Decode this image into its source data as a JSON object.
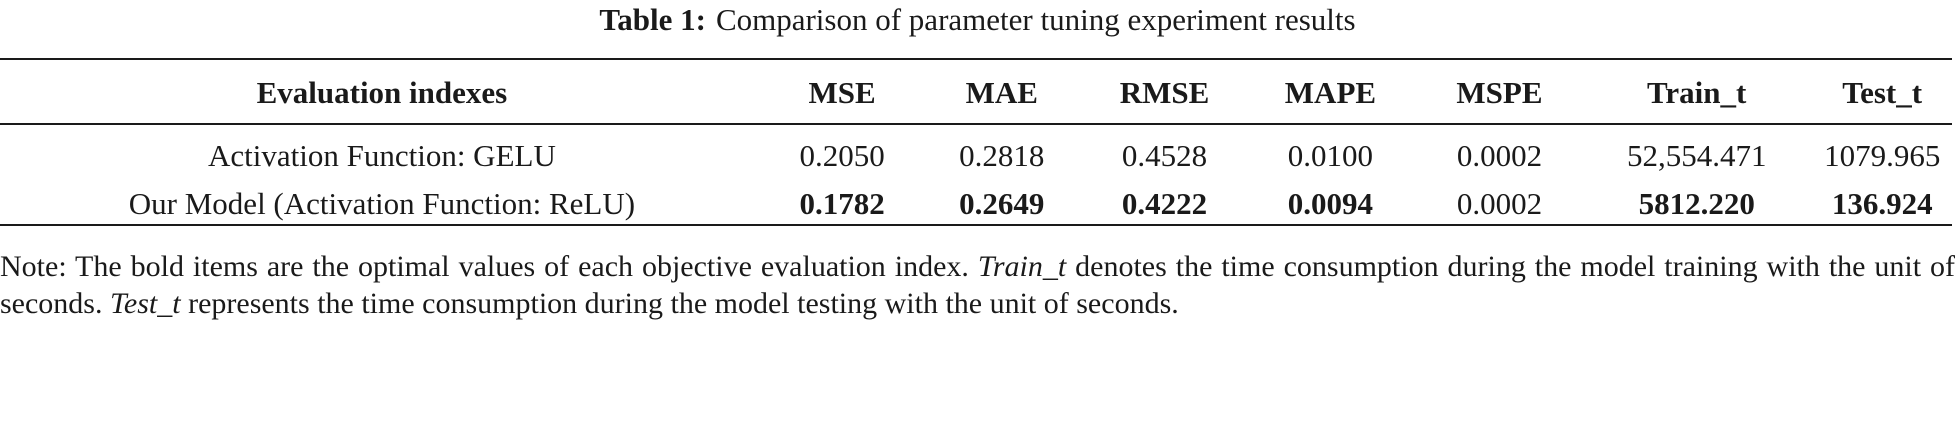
{
  "caption": {
    "label": "Table 1:",
    "title": "Comparison of parameter tuning experiment results"
  },
  "table": {
    "headers": [
      "Evaluation indexes",
      "MSE",
      "MAE",
      "RMSE",
      "MAPE",
      "MSPE",
      "Train_t",
      "Test_t"
    ],
    "rows": [
      {
        "name": "Activation Function: GELU",
        "values": [
          "0.2050",
          "0.2818",
          "0.4528",
          "0.0100",
          "0.0002",
          "52,554.471",
          "1079.965"
        ],
        "bold": [
          false,
          false,
          false,
          false,
          false,
          false,
          false
        ]
      },
      {
        "name": "Our Model (Activation Function: ReLU)",
        "values": [
          "0.1782",
          "0.2649",
          "0.4222",
          "0.0094",
          "0.0002",
          "5812.220",
          "136.924"
        ],
        "bold": [
          true,
          true,
          true,
          true,
          false,
          true,
          true
        ]
      }
    ]
  },
  "note": {
    "part1": "Note: The bold items are the optimal values of each objective evaluation index. ",
    "term1": "Train_t",
    "part2": " denotes the time consumption during the model training with the unit of seconds. ",
    "term2": "Test_t",
    "part3": " represents the time consumption during the model testing with the unit of seconds."
  }
}
